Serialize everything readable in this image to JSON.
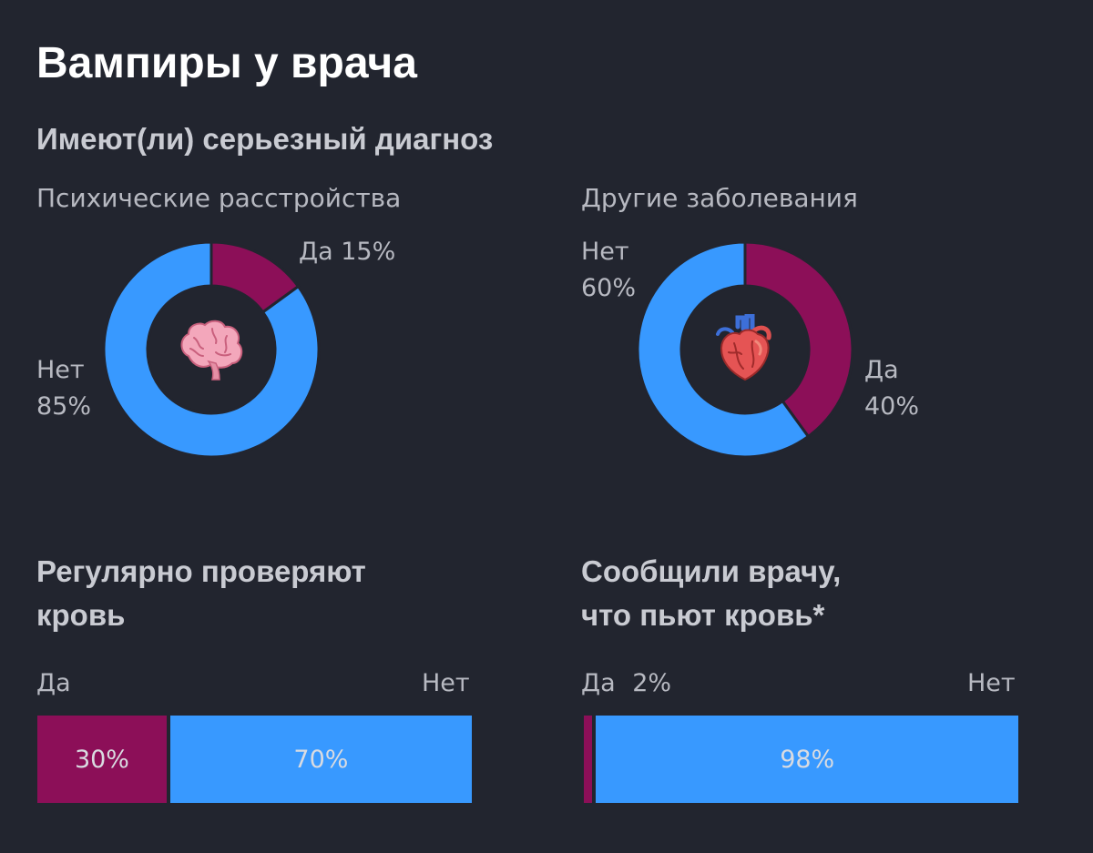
{
  "page": {
    "title": "Вампиры у врача",
    "subtitle": "Имеют(ли) серьезный диагноз"
  },
  "colors": {
    "yes": "#8c0f58",
    "no": "#3899ff",
    "background": "#22252f"
  },
  "icons": {
    "donut1": "brain-icon",
    "donut2": "anatomical-heart-icon"
  },
  "chart_data": [
    {
      "type": "pie",
      "title": "Психические расстройства",
      "labels": [
        "Да",
        "Нет"
      ],
      "values": [
        15,
        85
      ],
      "value_labels": [
        "15%",
        "85%"
      ],
      "colors": [
        "#8c0f58",
        "#3899ff"
      ]
    },
    {
      "type": "pie",
      "title": "Другие заболевания",
      "labels": [
        "Да",
        "Нет"
      ],
      "values": [
        40,
        60
      ],
      "value_labels": [
        "40%",
        "60%"
      ],
      "colors": [
        "#8c0f58",
        "#3899ff"
      ]
    },
    {
      "type": "bar",
      "title_lines": [
        "Регулярно проверяют",
        "кровь"
      ],
      "labels": [
        "Да",
        "Нет"
      ],
      "values": [
        30,
        70
      ],
      "value_labels": [
        "30%",
        "70%"
      ],
      "colors": [
        "#8c0f58",
        "#3899ff"
      ]
    },
    {
      "type": "bar",
      "title_lines": [
        "Сообщили врачу,",
        "что пьют кровь*"
      ],
      "labels": [
        "Да",
        "Нет"
      ],
      "values": [
        2,
        98
      ],
      "value_labels": [
        "2%",
        "98%"
      ],
      "colors": [
        "#8c0f58",
        "#3899ff"
      ]
    }
  ]
}
